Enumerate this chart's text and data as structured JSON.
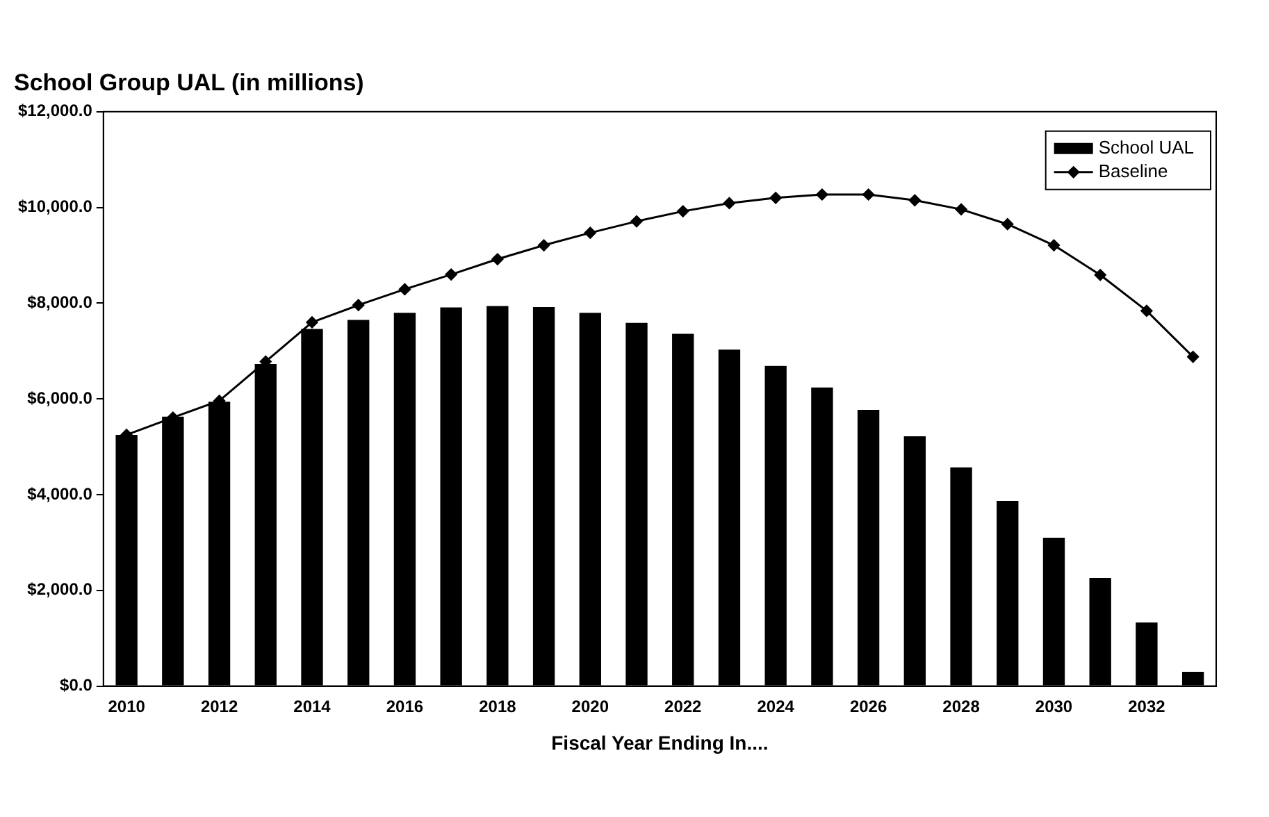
{
  "chart_data": {
    "type": "bar",
    "title": "School Group UAL (in millions)",
    "xlabel": "Fiscal Year Ending In....",
    "categories": [
      "2010",
      null,
      "2012",
      null,
      "2014",
      null,
      "2016",
      null,
      "2018",
      null,
      "2020",
      null,
      "2022",
      null,
      "2024",
      null,
      "2026",
      null,
      "2028",
      null,
      "2030",
      null,
      "2032",
      null
    ],
    "series": [
      {
        "name": "School UAL",
        "color": "#000000",
        "values": [
          5250,
          5630,
          5940,
          6730,
          7460,
          7650,
          7800,
          7910,
          7940,
          7920,
          7800,
          7590,
          7360,
          7030,
          6690,
          6240,
          5770,
          5220,
          4570,
          3870,
          3100,
          2260,
          1330,
          300
        ]
      },
      {
        "name": "Baseline",
        "type": "line",
        "color": "#000000",
        "marker": "diamond",
        "values": [
          5250,
          5610,
          5960,
          6780,
          7600,
          7960,
          8290,
          8600,
          8920,
          9210,
          9470,
          9710,
          9920,
          10090,
          10200,
          10270,
          10270,
          10150,
          9960,
          9650,
          9210,
          8590,
          7840,
          6880
        ]
      }
    ],
    "ylim": [
      0,
      12000
    ],
    "yticks": [
      {
        "value": 0,
        "label": "$0.0"
      },
      {
        "value": 2000,
        "label": "$2,000.0"
      },
      {
        "value": 4000,
        "label": "$4,000.0"
      },
      {
        "value": 6000,
        "label": "$6,000.0"
      },
      {
        "value": 8000,
        "label": "$8,000.0"
      },
      {
        "value": 10000,
        "label": "$10,000.0"
      },
      {
        "value": 12000,
        "label": "$12,000.0"
      }
    ],
    "grid": false,
    "legend": "top right"
  }
}
